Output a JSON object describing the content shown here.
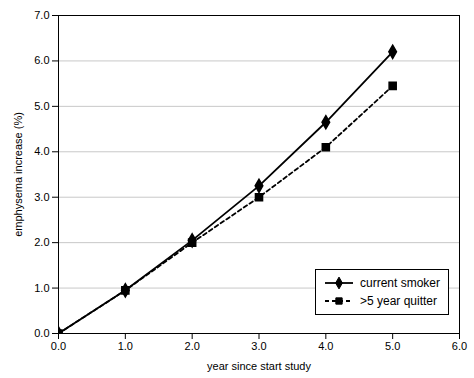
{
  "chart_data": {
    "type": "line",
    "x": [
      0,
      1,
      2,
      3,
      4,
      5
    ],
    "series": [
      {
        "name": "current smoker",
        "color": "#000000",
        "values": [
          0,
          0.95,
          2.05,
          3.25,
          4.65,
          6.2
        ],
        "marker": "diamond",
        "line_style": "solid"
      },
      {
        "name": ">5 year quitter",
        "color": "#000000",
        "values": [
          0,
          0.95,
          2.0,
          3.0,
          4.1,
          5.45
        ],
        "marker": "square",
        "line_style": "dashed"
      }
    ],
    "xlabel": "year since start study",
    "ylabel": "emphysema increase (%)",
    "xlim": [
      0,
      6
    ],
    "ylim": [
      0,
      7
    ],
    "xticks": [
      0,
      1,
      2,
      3,
      4,
      5,
      6
    ],
    "yticks": [
      0,
      1,
      2,
      3,
      4,
      5,
      6,
      7
    ],
    "grid": "y",
    "legend": "lower right"
  }
}
